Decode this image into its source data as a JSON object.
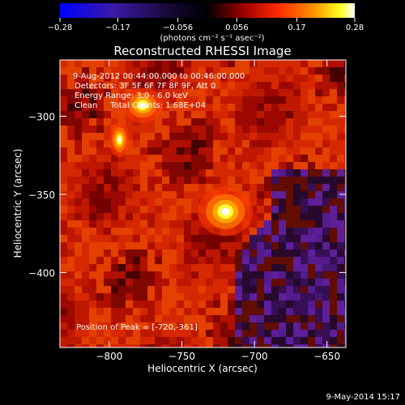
{
  "chart_data": {
    "type": "heatmap",
    "title": "Reconstructed RHESSI Image",
    "xlabel": "Heliocentric X (arcsec)",
    "ylabel": "Heliocentric Y (arcsec)",
    "x_range": [
      -834,
      -637
    ],
    "y_range": [
      -448,
      -264
    ],
    "x_ticks": [
      -800,
      -750,
      -700,
      -650
    ],
    "x_tick_labels": [
      "−800",
      "−750",
      "−700",
      "−650"
    ],
    "y_ticks": [
      -300,
      -350,
      -400
    ],
    "y_tick_labels": [
      "−300",
      "−350",
      "−400"
    ],
    "colorbar": {
      "range": [
        -0.28,
        0.28
      ],
      "ticks": [
        -0.28,
        -0.17,
        -0.056,
        0.056,
        0.17,
        0.28
      ],
      "tick_labels": [
        "−0.28",
        "−0.17",
        "−0.056",
        "0.056",
        "0.17",
        "0.28"
      ],
      "unit_label": "(photons cm⁻² s⁻¹ asec⁻²)",
      "colors": [
        "#0000ff",
        "#5a1a99",
        "#000000",
        "#8b0000",
        "#ff2200",
        "#ff8800",
        "#ffff00",
        "#ffffff"
      ]
    },
    "peak": {
      "x": -720,
      "y": -361
    },
    "sources": [
      {
        "x": -720,
        "y": -361,
        "value": 0.28
      },
      {
        "x": -777,
        "y": -293,
        "value": 0.2
      },
      {
        "x": -793,
        "y": -315,
        "value": 0.15
      }
    ],
    "annotations": [
      "9-Aug-2012 00:44:00.000 to 00:46:00.000",
      "Detectors: 3F 5F 6F 7F 8F 9F, Att 0",
      "Energy Range: 3.0 - 6.0 keV",
      "Clean     Total Counts: 1.68E+04"
    ],
    "peak_label": "Position of Peak = [-720,-361]"
  },
  "footer_date": "9-May-2014 15:17"
}
